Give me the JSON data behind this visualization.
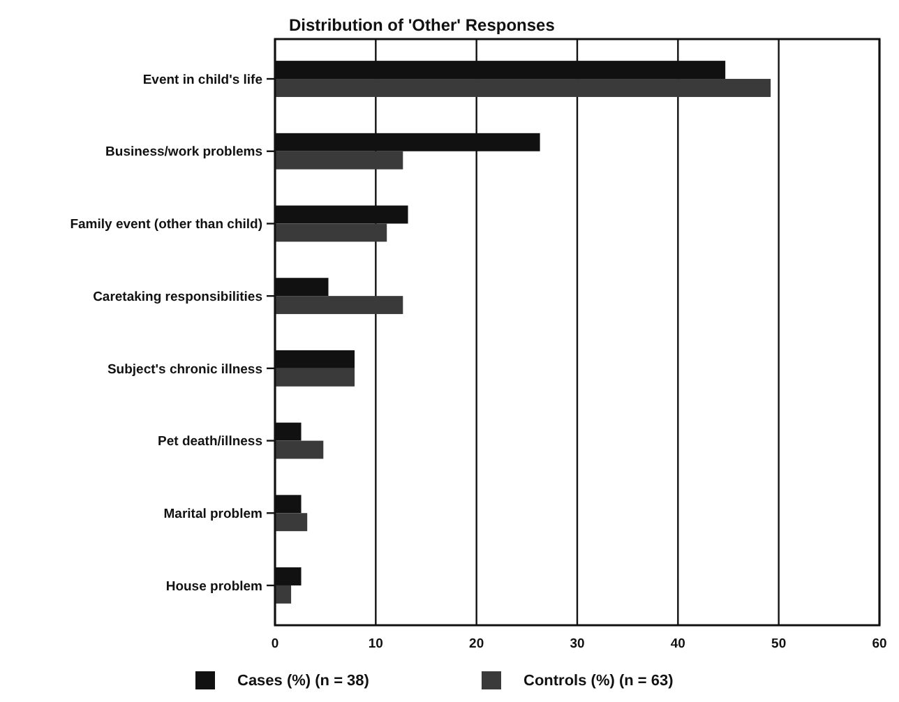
{
  "chart_data": {
    "type": "bar",
    "orientation": "horizontal",
    "title": "Distribution of 'Other' Responses",
    "categories": [
      "Event in child's life",
      "Business/work problems",
      "Family event (other than child)",
      "Caretaking responsibilities",
      "Subject's chronic illness",
      "Pet death/illness",
      "Marital problem",
      "House problem"
    ],
    "series": [
      {
        "name": "Cases (%) (n = 38)",
        "color": "#111111",
        "values": [
          44.7,
          26.3,
          13.2,
          5.3,
          7.9,
          2.6,
          2.6,
          2.6
        ]
      },
      {
        "name": "Controls (%) (n = 63)",
        "color": "#3a3a3a",
        "values": [
          49.2,
          12.7,
          11.1,
          12.7,
          7.9,
          4.8,
          3.2,
          1.6
        ]
      }
    ],
    "xlim": [
      0,
      60
    ],
    "xticks": [
      0,
      10,
      20,
      30,
      40,
      50,
      60
    ],
    "grid": "x",
    "legend": "bottom"
  }
}
